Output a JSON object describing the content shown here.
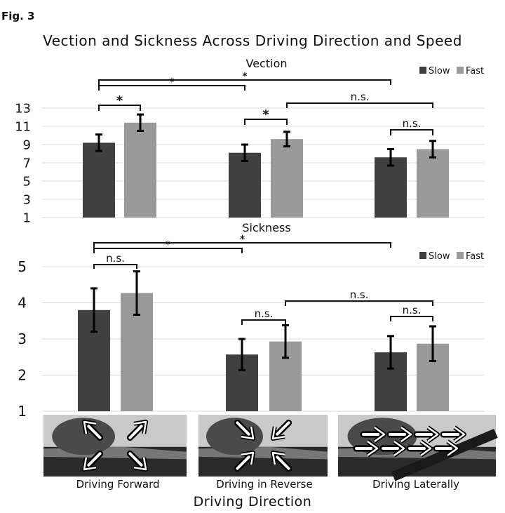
{
  "figure_label": "Fig. 3",
  "title": "Vection and Sickness Across Driving Direction and Speed",
  "x_axis_title": "Driving Direction",
  "colors": {
    "slow": "#404040",
    "fast": "#9a9a9a",
    "grid": "#d9d9d9",
    "bracket": "#111111"
  },
  "chart_data": [
    {
      "type": "bar",
      "title": "Vection",
      "categories": [
        "Driving Forward",
        "Driving in Reverse",
        "Driving Laterally"
      ],
      "series": [
        {
          "name": "Slow",
          "values": [
            9.2,
            8.1,
            7.6
          ],
          "errors": [
            0.9,
            0.9,
            0.9
          ]
        },
        {
          "name": "Fast",
          "values": [
            11.4,
            9.6,
            8.5
          ],
          "errors": [
            0.9,
            0.8,
            0.9
          ]
        }
      ],
      "ylim": [
        1,
        13
      ],
      "yticks": [
        1,
        3,
        5,
        7,
        9,
        11,
        13
      ],
      "legend": "top-right",
      "significance": [
        {
          "from": [
            0,
            0
          ],
          "to": [
            0,
            1
          ],
          "label": "*"
        },
        {
          "from": [
            1,
            0
          ],
          "to": [
            1,
            1
          ],
          "label": "*"
        },
        {
          "from": [
            2,
            0
          ],
          "to": [
            2,
            1
          ],
          "label": "n.s."
        },
        {
          "from": [
            1,
            1
          ],
          "to": [
            2,
            1
          ],
          "label": "n.s."
        },
        {
          "from": [
            0,
            0
          ],
          "to": [
            1,
            0
          ],
          "label": "*"
        },
        {
          "from": [
            0,
            0
          ],
          "to": [
            2,
            0
          ],
          "label": "*"
        }
      ]
    },
    {
      "type": "bar",
      "title": "Sickness",
      "categories": [
        "Driving Forward",
        "Driving in Reverse",
        "Driving Laterally"
      ],
      "series": [
        {
          "name": "Slow",
          "values": [
            3.8,
            2.57,
            2.63
          ],
          "errors": [
            0.6,
            0.43,
            0.45
          ]
        },
        {
          "name": "Fast",
          "values": [
            4.27,
            2.93,
            2.87
          ],
          "errors": [
            0.6,
            0.45,
            0.48
          ]
        }
      ],
      "ylim": [
        1,
        5
      ],
      "yticks": [
        1,
        2,
        3,
        4,
        5
      ],
      "legend": "top-right",
      "significance": [
        {
          "from": [
            0,
            0
          ],
          "to": [
            0,
            1
          ],
          "label": "n.s."
        },
        {
          "from": [
            1,
            0
          ],
          "to": [
            1,
            1
          ],
          "label": "n.s."
        },
        {
          "from": [
            2,
            0
          ],
          "to": [
            2,
            1
          ],
          "label": "n.s."
        },
        {
          "from": [
            1,
            1
          ],
          "to": [
            2,
            1
          ],
          "label": "n.s."
        },
        {
          "from": [
            0,
            0
          ],
          "to": [
            1,
            0
          ],
          "label": "*"
        },
        {
          "from": [
            0,
            0
          ],
          "to": [
            2,
            0
          ],
          "label": "*"
        }
      ]
    }
  ],
  "images": [
    {
      "caption": "Driving Forward",
      "arrows": "outward-diagonal-arrows-icon"
    },
    {
      "caption": "Driving in Reverse",
      "arrows": "inward-diagonal-arrows-icon"
    },
    {
      "caption": "Driving Laterally",
      "arrows": "right-arrows-icon"
    }
  ]
}
